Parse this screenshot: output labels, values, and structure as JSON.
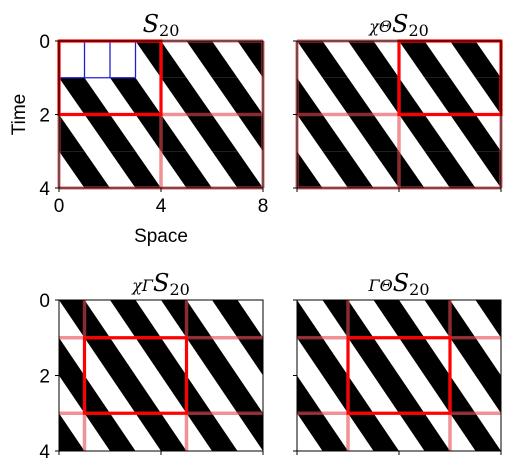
{
  "chart_data": [
    {
      "type": "heatmap",
      "title_parts": [
        "",
        "S",
        "20"
      ],
      "xlabel": "Space",
      "ylabel": "Time",
      "xlim": [
        0,
        8
      ],
      "ylim": [
        4,
        0
      ],
      "xticks": [
        "0",
        "4",
        "8"
      ],
      "yticks": [
        "0",
        "2",
        "4"
      ],
      "show_xtick_labels": true,
      "show_ytick_labels": true,
      "pattern": [
        "LRLRLRLR",
        "RLRLRLRL",
        "LRLRLRLR",
        "RLRLRLRL"
      ],
      "blue_grid": {
        "x": [
          0,
          3
        ],
        "y": [
          0,
          1
        ]
      },
      "outline": {
        "x": [
          0,
          4
        ],
        "y": [
          0,
          2
        ]
      },
      "periodic_lines": {
        "x": [
          0,
          4,
          8
        ],
        "y": [
          0,
          2,
          4
        ]
      }
    },
    {
      "type": "heatmap",
      "title_parts": [
        "χΘ",
        "S",
        "20"
      ],
      "xlim": [
        0,
        8
      ],
      "ylim": [
        4,
        0
      ],
      "xticks": [
        "",
        "",
        ""
      ],
      "yticks": [
        "",
        "",
        ""
      ],
      "show_xtick_labels": false,
      "show_ytick_labels": false,
      "pattern": [
        "RLRLRLRL",
        "LRLRLRLR",
        "RLRLRLRL",
        "LRLRLRLR"
      ],
      "outline": {
        "x": [
          4,
          8
        ],
        "y": [
          0,
          2
        ]
      },
      "periodic_lines": {
        "x": [
          0,
          4,
          8
        ],
        "y": [
          0,
          2,
          4
        ]
      }
    },
    {
      "type": "heatmap",
      "title_parts": [
        "χΓ",
        "S",
        "20"
      ],
      "xlim": [
        0,
        8
      ],
      "ylim": [
        4,
        0
      ],
      "xticks": [
        "",
        "",
        ""
      ],
      "yticks": [
        "0",
        "2",
        "4"
      ],
      "show_xtick_labels": false,
      "show_ytick_labels": true,
      "pattern": [
        "RLRLRLRL",
        "LRLRLRLR",
        "RLRLRLRL",
        "LRLRLRLR"
      ],
      "outline": {
        "x": [
          1,
          5
        ],
        "y": [
          1,
          3
        ]
      },
      "periodic_lines": {
        "x": [
          1,
          5
        ],
        "y": [
          1,
          3
        ]
      }
    },
    {
      "type": "heatmap",
      "title_parts": [
        "ΓΘ",
        "S",
        "20"
      ],
      "xlim": [
        0,
        8
      ],
      "ylim": [
        4,
        0
      ],
      "xticks": [
        "",
        "",
        ""
      ],
      "yticks": [
        "",
        "",
        ""
      ],
      "show_xtick_labels": false,
      "show_ytick_labels": false,
      "pattern": [
        "LRLRLRLR",
        "RLRLRLRL",
        "LRLRLRLR",
        "RLRLRLRL"
      ],
      "outline": {
        "x": [
          2,
          6
        ],
        "y": [
          1,
          3
        ]
      },
      "periodic_lines": {
        "x": [
          2,
          6
        ],
        "y": [
          1,
          3
        ]
      }
    }
  ]
}
